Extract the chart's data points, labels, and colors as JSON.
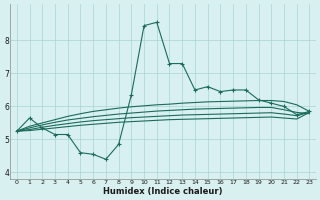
{
  "xlabel": "Humidex (Indice chaleur)",
  "x_values": [
    0,
    1,
    2,
    3,
    4,
    5,
    6,
    7,
    8,
    9,
    10,
    11,
    12,
    13,
    14,
    15,
    16,
    17,
    18,
    19,
    20,
    21,
    22,
    23
  ],
  "line_main": [
    5.25,
    5.65,
    5.35,
    5.15,
    5.15,
    4.6,
    4.55,
    4.4,
    4.85,
    6.35,
    8.45,
    8.55,
    7.3,
    7.3,
    6.5,
    6.6,
    6.45,
    6.5,
    6.5,
    6.2,
    6.1,
    6.0,
    5.75,
    5.85
  ],
  "line_upper": [
    5.25,
    5.4,
    5.5,
    5.6,
    5.7,
    5.78,
    5.85,
    5.9,
    5.95,
    5.99,
    6.02,
    6.05,
    6.07,
    6.1,
    6.12,
    6.14,
    6.15,
    6.16,
    6.17,
    6.18,
    6.18,
    6.15,
    6.05,
    5.85
  ],
  "line_mid1": [
    5.25,
    5.35,
    5.44,
    5.52,
    5.59,
    5.64,
    5.69,
    5.73,
    5.77,
    5.8,
    5.83,
    5.86,
    5.88,
    5.9,
    5.92,
    5.93,
    5.94,
    5.95,
    5.96,
    5.97,
    5.97,
    5.9,
    5.82,
    5.78
  ],
  "line_mid2": [
    5.25,
    5.3,
    5.37,
    5.43,
    5.48,
    5.53,
    5.57,
    5.6,
    5.63,
    5.66,
    5.68,
    5.7,
    5.72,
    5.74,
    5.75,
    5.76,
    5.77,
    5.78,
    5.79,
    5.8,
    5.81,
    5.77,
    5.72,
    5.82
  ],
  "line_lower": [
    5.25,
    5.27,
    5.31,
    5.35,
    5.39,
    5.43,
    5.46,
    5.49,
    5.52,
    5.54,
    5.56,
    5.58,
    5.6,
    5.61,
    5.62,
    5.63,
    5.64,
    5.65,
    5.66,
    5.67,
    5.68,
    5.65,
    5.62,
    5.82
  ],
  "line_color": "#1a6b5a",
  "bg_color": "#d8f0f0",
  "grid_color": "#a8d4d4",
  "ylim": [
    3.8,
    9.1
  ],
  "xlim": [
    -0.5,
    23.5
  ]
}
